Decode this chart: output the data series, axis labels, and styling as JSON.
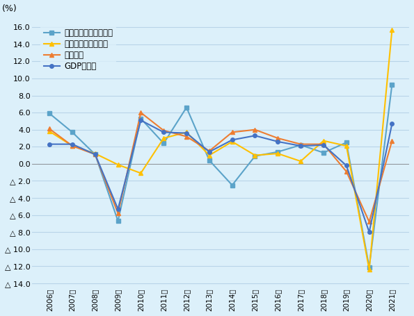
{
  "years": [
    2006,
    2007,
    2008,
    2009,
    2010,
    2011,
    2012,
    2013,
    2014,
    2015,
    2016,
    2017,
    2018,
    2019,
    2020,
    2021
  ],
  "gdp": [
    2.3,
    2.3,
    1.1,
    -5.3,
    5.1,
    3.7,
    3.6,
    1.4,
    2.8,
    3.3,
    2.6,
    2.1,
    2.2,
    -0.2,
    -8.0,
    4.7
  ],
  "formal": [
    4.1,
    2.1,
    1.1,
    -5.8,
    6.0,
    3.9,
    3.2,
    1.5,
    3.7,
    4.0,
    3.0,
    2.3,
    2.3,
    -0.9,
    -6.8,
    2.7
  ],
  "informal": [
    3.8,
    2.1,
    1.2,
    -0.1,
    -1.1,
    3.0,
    3.7,
    1.0,
    2.6,
    1.0,
    1.2,
    0.3,
    2.7,
    2.1,
    -12.4,
    15.7
  ],
  "other_informal": [
    5.9,
    3.7,
    1.1,
    -6.7,
    5.3,
    2.4,
    6.6,
    0.4,
    -2.5,
    0.9,
    1.4,
    2.2,
    1.3,
    2.5,
    -12.1,
    9.3
  ],
  "gdp_color": "#4472C4",
  "formal_color": "#ED7D31",
  "informal_color": "#FFC000",
  "other_informal_color": "#5BA3C9",
  "background_color": "#DCF0FA",
  "grid_color": "#B8D4E8",
  "title_label": "(%)",
  "legend_gdp": "GDP成長率",
  "legend_formal": "正規部門",
  "legend_informal": "インフォーマル部門",
  "legend_other": "その他インフォーマル",
  "ylim": [
    -14.5,
    17.0
  ],
  "yticks": [
    16.0,
    14.0,
    12.0,
    10.0,
    8.0,
    6.0,
    4.0,
    2.0,
    0.0,
    -2.0,
    -4.0,
    -6.0,
    -8.0,
    -10.0,
    -12.0,
    -14.0
  ]
}
